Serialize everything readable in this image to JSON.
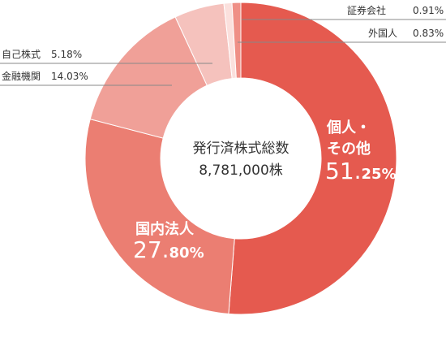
{
  "chart_data": {
    "type": "pie",
    "style": "donut",
    "center_text": [
      "発行済株式総数",
      "8,781,000株"
    ],
    "slices": [
      {
        "name": "個人・その他",
        "value": 51.25,
        "color": "#e55a4f"
      },
      {
        "name": "国内法人",
        "value": 27.8,
        "color": "#eb7e72"
      },
      {
        "name": "金融機関",
        "value": 14.03,
        "color": "#f0a098"
      },
      {
        "name": "自己株式",
        "value": 5.18,
        "color": "#f5c2bd"
      },
      {
        "name": "外国人",
        "value": 0.83,
        "color": "#fbe0dd"
      },
      {
        "name": "証券会社",
        "value": 0.91,
        "color": "#ef8f86"
      }
    ],
    "inner_labels": {
      "individual": {
        "line1": "個人・",
        "line2": "その他",
        "pct_int": "51.",
        "pct_dec": "25%"
      },
      "domestic": {
        "line1": "国内法人",
        "pct_int": "27.",
        "pct_dec": "80%"
      }
    },
    "callouts": {
      "securities": {
        "name": "証券会社",
        "pct": "0.91%"
      },
      "foreign": {
        "name": "外国人",
        "pct": "0.83%"
      },
      "treasury": {
        "name": "自己株式",
        "pct": "5.18%"
      },
      "financial": {
        "name": "金融機関",
        "pct": "14.03%"
      }
    }
  }
}
